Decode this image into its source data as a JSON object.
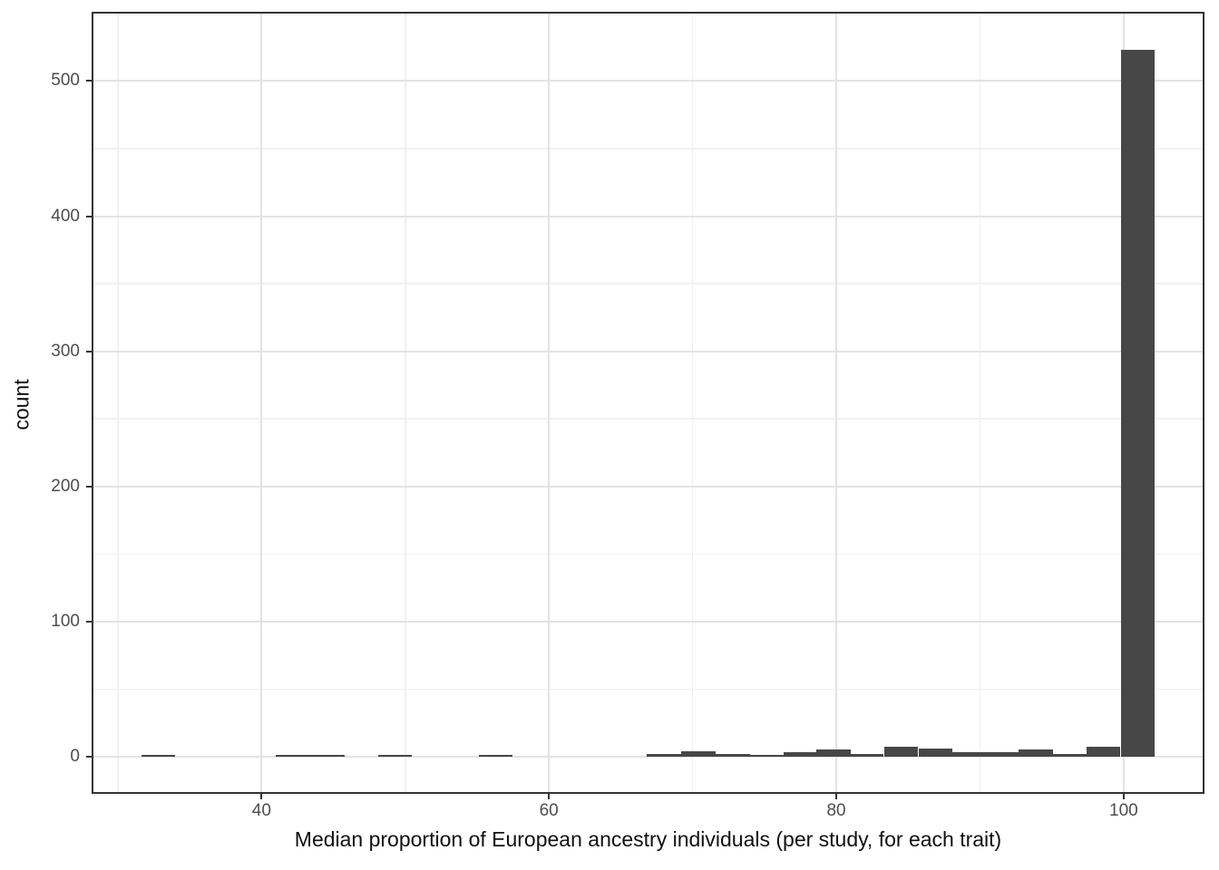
{
  "chart_data": {
    "type": "bar",
    "subtype": "histogram",
    "title": "",
    "xlabel": "Median proportion of European ancestry individuals (per study, for each trait)",
    "ylabel": "count",
    "legend_position": "none",
    "grid": "major and minor, light gray on white",
    "bin_width": 2.37,
    "xlim": [
      28.3,
      105.5
    ],
    "ylim": [
      -26.2,
      549.9
    ],
    "x_ticks": [
      40,
      60,
      80,
      100
    ],
    "y_ticks": [
      0,
      100,
      200,
      300,
      400,
      500
    ],
    "x_minor_gridlines": [
      30,
      50,
      70,
      90
    ],
    "y_minor_gridlines": [
      50,
      150,
      250,
      350,
      450
    ],
    "bars": [
      {
        "x": 32.8,
        "count": 1
      },
      {
        "x": 42.2,
        "count": 1
      },
      {
        "x": 44.6,
        "count": 1
      },
      {
        "x": 49.3,
        "count": 1
      },
      {
        "x": 56.3,
        "count": 1
      },
      {
        "x": 68.0,
        "count": 2
      },
      {
        "x": 70.4,
        "count": 4
      },
      {
        "x": 72.8,
        "count": 2
      },
      {
        "x": 75.2,
        "count": 1
      },
      {
        "x": 77.5,
        "count": 3
      },
      {
        "x": 79.8,
        "count": 5
      },
      {
        "x": 82.1,
        "count": 2
      },
      {
        "x": 84.5,
        "count": 7
      },
      {
        "x": 86.9,
        "count": 6
      },
      {
        "x": 89.2,
        "count": 3
      },
      {
        "x": 91.5,
        "count": 3
      },
      {
        "x": 93.9,
        "count": 5
      },
      {
        "x": 96.3,
        "count": 2
      },
      {
        "x": 98.6,
        "count": 7
      },
      {
        "x": 101.0,
        "count": 523
      }
    ],
    "style": {
      "bar_color": "#474747",
      "panel_border_color": "#333333",
      "grid_major_color": "#e3e3e3",
      "grid_minor_color": "#f1f1f1",
      "tick_mark_color": "#333333",
      "tick_label_color": "#4d4d4d",
      "axis_title_color": "#111111",
      "background_color": "#ffffff"
    }
  }
}
